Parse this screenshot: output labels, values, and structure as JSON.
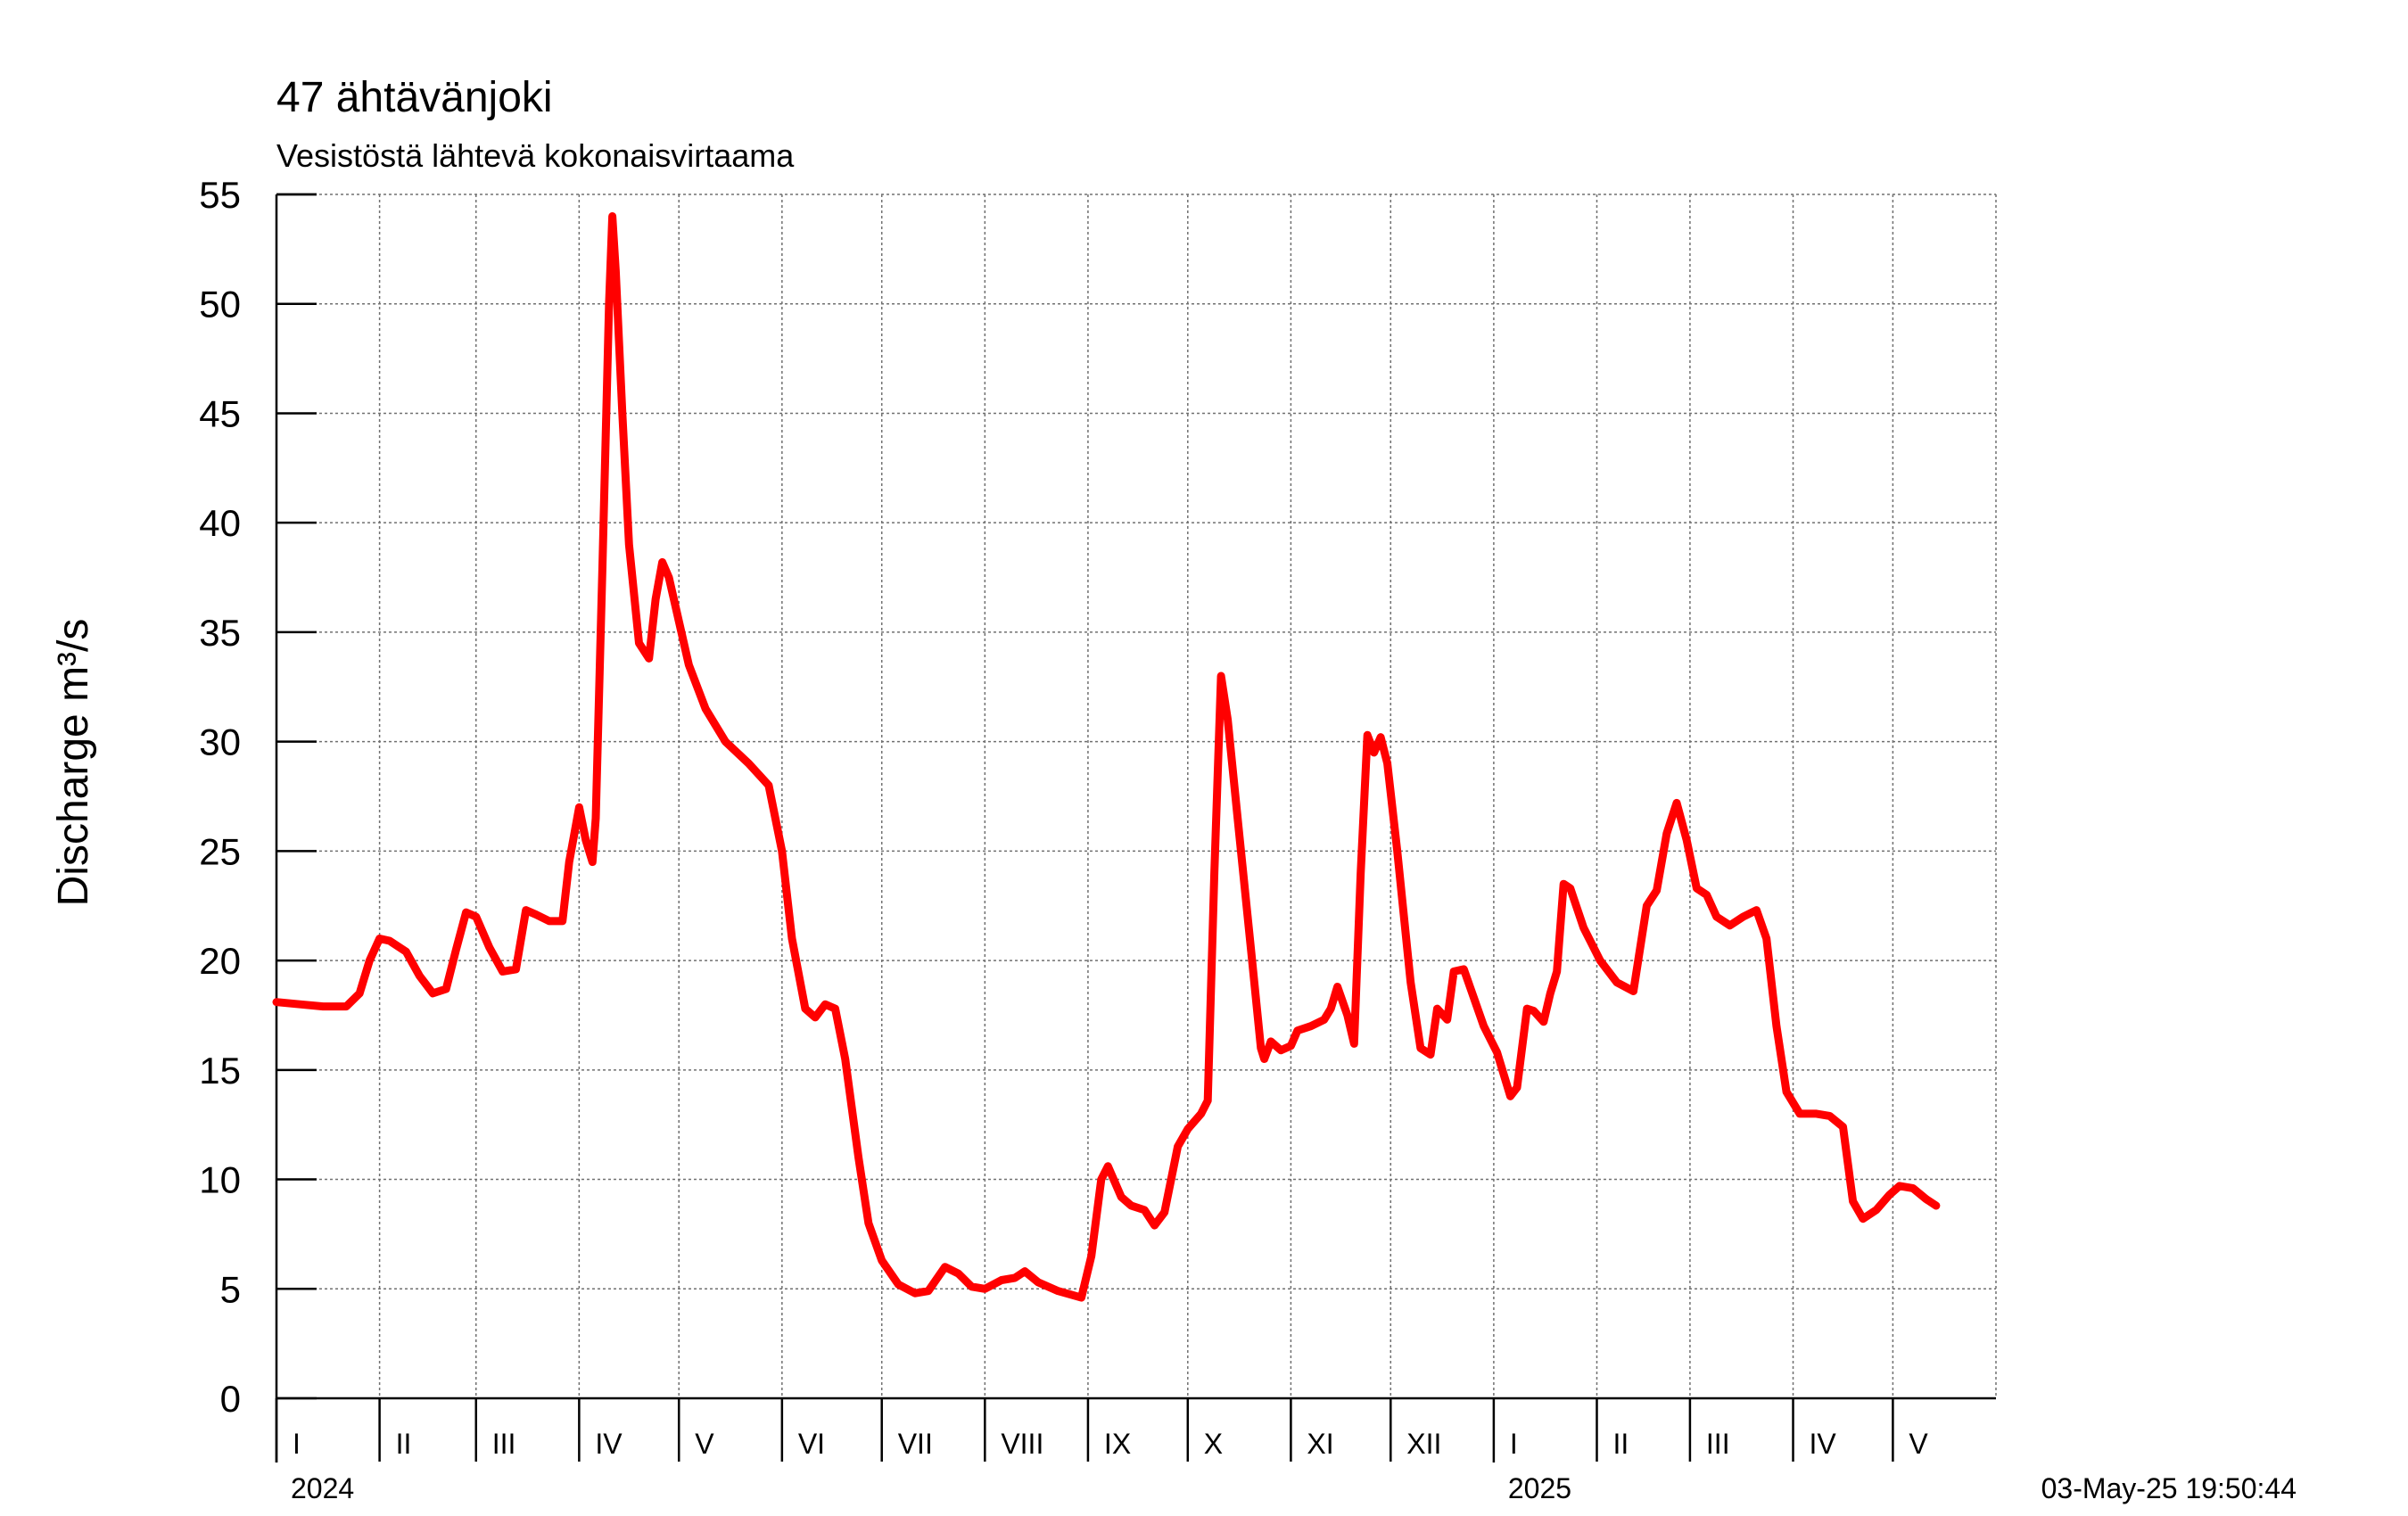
{
  "chart_data": {
    "type": "line",
    "title": "47 ähtävänjoki",
    "subtitle": "Vesistöstä lähtevä kokonaisvirtaama",
    "ylabel": "Discharge m³/s",
    "ylim": [
      0,
      55
    ],
    "yticks": [
      "0",
      "5",
      "10",
      "15",
      "20",
      "25",
      "30",
      "35",
      "40",
      "45",
      "50",
      "55"
    ],
    "xlim": [
      "2024-01-01",
      "2025-05-31"
    ],
    "grid": true,
    "months": [
      {
        "label": "I",
        "start": "2024-01-01"
      },
      {
        "label": "II",
        "start": "2024-02-01"
      },
      {
        "label": "III",
        "start": "2024-03-01"
      },
      {
        "label": "IV",
        "start": "2024-04-01"
      },
      {
        "label": "V",
        "start": "2024-05-01"
      },
      {
        "label": "VI",
        "start": "2024-06-01"
      },
      {
        "label": "VII",
        "start": "2024-07-01"
      },
      {
        "label": "VIII",
        "start": "2024-08-01"
      },
      {
        "label": "IX",
        "start": "2024-09-01"
      },
      {
        "label": "X",
        "start": "2024-10-01"
      },
      {
        "label": "XI",
        "start": "2024-11-01"
      },
      {
        "label": "XII",
        "start": "2024-12-01"
      },
      {
        "label": "I",
        "start": "2025-01-01"
      },
      {
        "label": "II",
        "start": "2025-02-01"
      },
      {
        "label": "III",
        "start": "2025-03-01"
      },
      {
        "label": "IV",
        "start": "2025-04-01"
      },
      {
        "label": "V",
        "start": "2025-05-01"
      }
    ],
    "years": [
      {
        "label": "2024",
        "start": "2024-01-01"
      },
      {
        "label": "2025",
        "start": "2025-01-01"
      }
    ],
    "timestamp": "03-May-25 19:50:44",
    "series": [
      {
        "color": "#ff0000",
        "points": [
          [
            "2024-01-01",
            18.1
          ],
          [
            "2024-01-08",
            18.0
          ],
          [
            "2024-01-15",
            17.9
          ],
          [
            "2024-01-22",
            17.9
          ],
          [
            "2024-01-26",
            18.5
          ],
          [
            "2024-01-29",
            20.0
          ],
          [
            "2024-02-01",
            21.0
          ],
          [
            "2024-02-04",
            20.9
          ],
          [
            "2024-02-09",
            20.4
          ],
          [
            "2024-02-13",
            19.3
          ],
          [
            "2024-02-17",
            18.5
          ],
          [
            "2024-02-21",
            18.7
          ],
          [
            "2024-02-24",
            20.5
          ],
          [
            "2024-02-27",
            22.2
          ],
          [
            "2024-03-01",
            22.0
          ],
          [
            "2024-03-05",
            20.6
          ],
          [
            "2024-03-09",
            19.5
          ],
          [
            "2024-03-13",
            19.6
          ],
          [
            "2024-03-16",
            22.3
          ],
          [
            "2024-03-19",
            22.1
          ],
          [
            "2024-03-23",
            21.8
          ],
          [
            "2024-03-27",
            21.8
          ],
          [
            "2024-03-29",
            24.5
          ],
          [
            "2024-04-01",
            27.0
          ],
          [
            "2024-04-03",
            25.5
          ],
          [
            "2024-04-05",
            24.5
          ],
          [
            "2024-04-06",
            26.5
          ],
          [
            "2024-04-08",
            38.0
          ],
          [
            "2024-04-10",
            50.0
          ],
          [
            "2024-04-11",
            54.0
          ],
          [
            "2024-04-12",
            51.5
          ],
          [
            "2024-04-14",
            45.0
          ],
          [
            "2024-04-16",
            39.0
          ],
          [
            "2024-04-19",
            34.5
          ],
          [
            "2024-04-22",
            33.8
          ],
          [
            "2024-04-24",
            36.5
          ],
          [
            "2024-04-26",
            38.2
          ],
          [
            "2024-04-28",
            37.5
          ],
          [
            "2024-05-01",
            35.5
          ],
          [
            "2024-05-04",
            33.5
          ],
          [
            "2024-05-09",
            31.5
          ],
          [
            "2024-05-15",
            30.0
          ],
          [
            "2024-05-22",
            29.0
          ],
          [
            "2024-05-28",
            28.0
          ],
          [
            "2024-06-01",
            25.0
          ],
          [
            "2024-06-04",
            21.0
          ],
          [
            "2024-06-08",
            17.8
          ],
          [
            "2024-06-11",
            17.4
          ],
          [
            "2024-06-14",
            18.0
          ],
          [
            "2024-06-17",
            17.8
          ],
          [
            "2024-06-20",
            15.5
          ],
          [
            "2024-06-24",
            11.0
          ],
          [
            "2024-06-27",
            8.0
          ],
          [
            "2024-07-01",
            6.3
          ],
          [
            "2024-07-06",
            5.2
          ],
          [
            "2024-07-11",
            4.8
          ],
          [
            "2024-07-15",
            4.9
          ],
          [
            "2024-07-20",
            6.0
          ],
          [
            "2024-07-24",
            5.7
          ],
          [
            "2024-07-28",
            5.1
          ],
          [
            "2024-08-01",
            5.0
          ],
          [
            "2024-08-06",
            5.4
          ],
          [
            "2024-08-10",
            5.5
          ],
          [
            "2024-08-13",
            5.8
          ],
          [
            "2024-08-17",
            5.3
          ],
          [
            "2024-08-23",
            4.9
          ],
          [
            "2024-08-30",
            4.6
          ],
          [
            "2024-09-02",
            6.5
          ],
          [
            "2024-09-05",
            10.0
          ],
          [
            "2024-09-07",
            10.6
          ],
          [
            "2024-09-11",
            9.2
          ],
          [
            "2024-09-14",
            8.8
          ],
          [
            "2024-09-18",
            8.6
          ],
          [
            "2024-09-21",
            7.9
          ],
          [
            "2024-09-24",
            8.5
          ],
          [
            "2024-09-28",
            11.5
          ],
          [
            "2024-10-01",
            12.3
          ],
          [
            "2024-10-05",
            13.0
          ],
          [
            "2024-10-07",
            13.6
          ],
          [
            "2024-10-09",
            24.0
          ],
          [
            "2024-10-11",
            33.0
          ],
          [
            "2024-10-13",
            31.0
          ],
          [
            "2024-10-16",
            26.5
          ],
          [
            "2024-10-20",
            20.5
          ],
          [
            "2024-10-23",
            16.0
          ],
          [
            "2024-10-24",
            15.5
          ],
          [
            "2024-10-26",
            16.3
          ],
          [
            "2024-10-29",
            15.9
          ],
          [
            "2024-11-01",
            16.1
          ],
          [
            "2024-11-03",
            16.8
          ],
          [
            "2024-11-07",
            17.0
          ],
          [
            "2024-11-11",
            17.3
          ],
          [
            "2024-11-13",
            17.8
          ],
          [
            "2024-11-15",
            18.8
          ],
          [
            "2024-11-18",
            17.5
          ],
          [
            "2024-11-20",
            16.2
          ],
          [
            "2024-11-22",
            24.0
          ],
          [
            "2024-11-24",
            30.3
          ],
          [
            "2024-11-26",
            29.5
          ],
          [
            "2024-11-28",
            30.2
          ],
          [
            "2024-11-30",
            29.0
          ],
          [
            "2024-12-03",
            25.0
          ],
          [
            "2024-12-07",
            19.0
          ],
          [
            "2024-12-10",
            16.0
          ],
          [
            "2024-12-13",
            15.7
          ],
          [
            "2024-12-15",
            17.8
          ],
          [
            "2024-12-18",
            17.3
          ],
          [
            "2024-12-20",
            19.5
          ],
          [
            "2024-12-23",
            19.6
          ],
          [
            "2024-12-26",
            18.3
          ],
          [
            "2024-12-29",
            17.0
          ],
          [
            "2025-01-02",
            15.8
          ],
          [
            "2025-01-06",
            13.8
          ],
          [
            "2025-01-08",
            14.2
          ],
          [
            "2025-01-11",
            17.8
          ],
          [
            "2025-01-13",
            17.7
          ],
          [
            "2025-01-16",
            17.2
          ],
          [
            "2025-01-18",
            18.5
          ],
          [
            "2025-01-20",
            19.5
          ],
          [
            "2025-01-22",
            23.5
          ],
          [
            "2025-01-24",
            23.3
          ],
          [
            "2025-01-28",
            21.5
          ],
          [
            "2025-02-02",
            20.0
          ],
          [
            "2025-02-07",
            19.0
          ],
          [
            "2025-02-12",
            18.6
          ],
          [
            "2025-02-16",
            22.5
          ],
          [
            "2025-02-19",
            23.2
          ],
          [
            "2025-02-22",
            25.8
          ],
          [
            "2025-02-25",
            27.2
          ],
          [
            "2025-02-28",
            25.5
          ],
          [
            "2025-03-03",
            23.3
          ],
          [
            "2025-03-06",
            23.0
          ],
          [
            "2025-03-09",
            22.0
          ],
          [
            "2025-03-13",
            21.6
          ],
          [
            "2025-03-17",
            22.0
          ],
          [
            "2025-03-21",
            22.3
          ],
          [
            "2025-03-24",
            21.0
          ],
          [
            "2025-03-27",
            17.0
          ],
          [
            "2025-03-30",
            14.0
          ],
          [
            "2025-04-03",
            13.0
          ],
          [
            "2025-04-08",
            13.0
          ],
          [
            "2025-04-12",
            12.9
          ],
          [
            "2025-04-16",
            12.4
          ],
          [
            "2025-04-19",
            9.0
          ],
          [
            "2025-04-22",
            8.2
          ],
          [
            "2025-04-26",
            8.6
          ],
          [
            "2025-04-30",
            9.3
          ],
          [
            "2025-05-03",
            9.7
          ],
          [
            "2025-05-07",
            9.6
          ],
          [
            "2025-05-11",
            9.1
          ],
          [
            "2025-05-14",
            8.8
          ]
        ]
      }
    ]
  }
}
